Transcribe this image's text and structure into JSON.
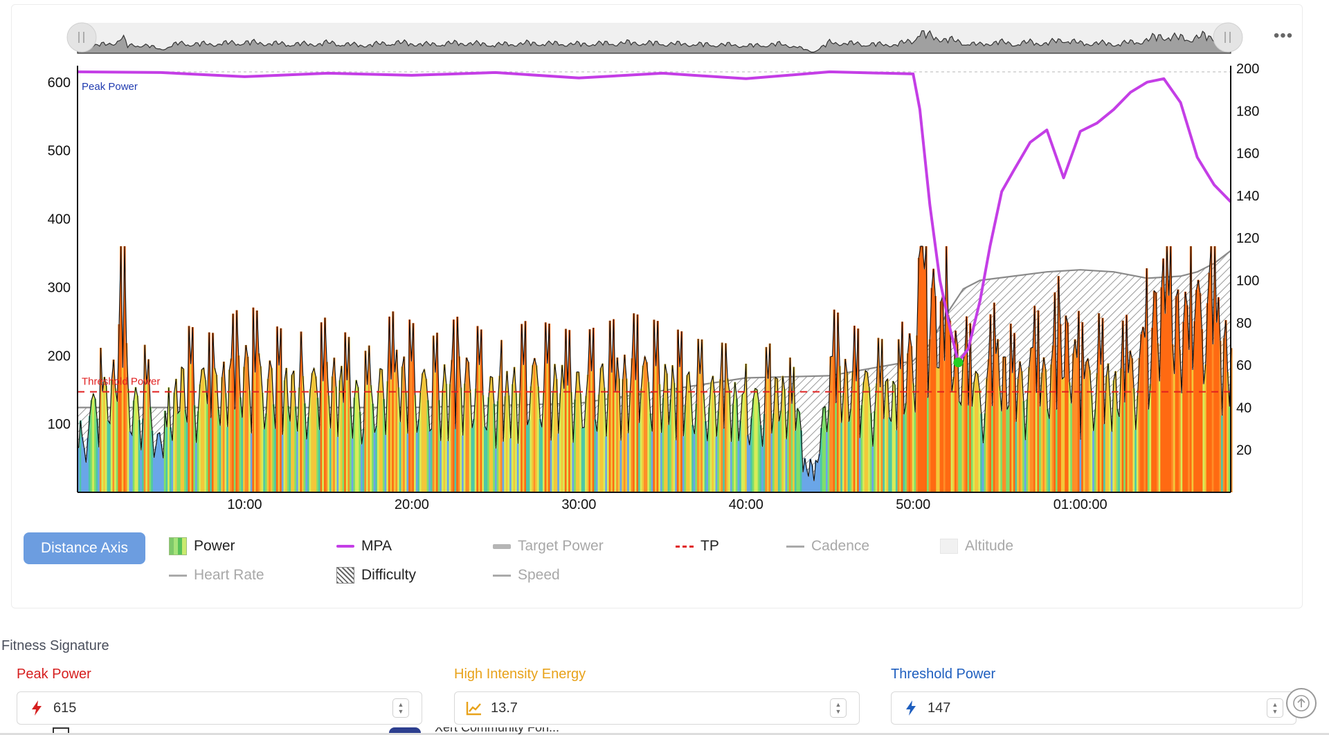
{
  "chart": {
    "left_axis_ticks": [
      "600",
      "500",
      "400",
      "300",
      "200",
      "100"
    ],
    "right_axis_ticks": [
      "200",
      "180",
      "160",
      "140",
      "120",
      "100",
      "80",
      "60",
      "40",
      "20"
    ],
    "time_ticks": [
      "10:00",
      "20:00",
      "30:00",
      "40:00",
      "50:00",
      "01:00:00"
    ],
    "peak_power_label": "Peak Power",
    "threshold_power_label": "Threshold Power",
    "menu_glyph": "•••"
  },
  "chart_data": {
    "type": "area",
    "x_unit": "minutes",
    "x_range": [
      0,
      69
    ],
    "y_left_range": [
      0,
      620
    ],
    "y_right_range": [
      0,
      200
    ],
    "peak_power": 615,
    "threshold_power": 147,
    "mpa_marker_minute": 52.7,
    "series": [
      {
        "name": "MPA",
        "x": [
          0,
          5,
          10,
          15,
          20,
          25,
          30,
          35,
          40,
          45,
          50,
          50.4,
          51,
          51.6,
          52.2,
          52.7,
          53.3,
          54,
          54.6,
          55.3,
          56,
          57,
          58,
          59,
          60,
          61,
          62,
          63,
          64,
          65,
          66,
          67,
          68,
          69
        ],
        "values": [
          615,
          614,
          608,
          613,
          610,
          614,
          606,
          613,
          605,
          615,
          612,
          560,
          420,
          310,
          240,
          190,
          210,
          280,
          360,
          440,
          470,
          512,
          530,
          460,
          528,
          540,
          560,
          585,
          600,
          605,
          570,
          490,
          450,
          425
        ]
      },
      {
        "name": "Power",
        "x": [
          0,
          1,
          2,
          2.7,
          3,
          4,
          5,
          6,
          8,
          10,
          12,
          14,
          15,
          17,
          19,
          20,
          21,
          23,
          25,
          27,
          30,
          33,
          35,
          37,
          39,
          40,
          42,
          43,
          44,
          45,
          47,
          49,
          50,
          50.3,
          51,
          52,
          53,
          54,
          55,
          56,
          57,
          58,
          59,
          60,
          61,
          62,
          63,
          64,
          64.8,
          65.5,
          66.5,
          67.5,
          69
        ],
        "values": [
          60,
          130,
          150,
          265,
          120,
          140,
          60,
          160,
          150,
          180,
          155,
          150,
          170,
          130,
          175,
          160,
          145,
          170,
          140,
          165,
          150,
          170,
          160,
          145,
          140,
          120,
          150,
          110,
          15,
          175,
          150,
          140,
          215,
          335,
          280,
          230,
          170,
          140,
          190,
          150,
          180,
          160,
          230,
          160,
          170,
          150,
          175,
          215,
          290,
          260,
          240,
          280,
          190
        ]
      },
      {
        "name": "Difficulty",
        "x": [
          0,
          20,
          30,
          35,
          40,
          45,
          50,
          51,
          52,
          53,
          54,
          56,
          58,
          60,
          62,
          64,
          66,
          67,
          68,
          69
        ],
        "values": [
          40,
          40,
          42,
          48,
          54,
          55,
          62,
          70,
          84,
          96,
          100,
          102,
          104,
          105,
          104,
          101,
          102,
          104,
          108,
          114
        ]
      }
    ]
  },
  "legend": {
    "distance_axis": "Distance Axis",
    "power": "Power",
    "mpa": "MPA",
    "target_power": "Target Power",
    "tp": "TP",
    "cadence": "Cadence",
    "altitude": "Altitude",
    "heart_rate": "Heart Rate",
    "difficulty": "Difficulty",
    "speed": "Speed"
  },
  "colors": {
    "mpa": "#c43ee6",
    "threshold": "#e02020",
    "peak_label": "#1f3ab0",
    "button": "#6c9de0",
    "peak_field_label": "#d61f1f",
    "hie_field_label": "#e8a21a",
    "tp_field_label": "#1f5fbf"
  },
  "fitness": {
    "title": "Fitness Signature",
    "peak_power": {
      "label": "Peak Power",
      "value": "615",
      "icon": "lightning-icon"
    },
    "high_intensity_energy": {
      "label": "High Intensity Energy",
      "value": "13.7",
      "icon": "trend-icon"
    },
    "threshold_power": {
      "label": "Threshold Power",
      "value": "147",
      "icon": "lightning-icon"
    }
  },
  "footer": {
    "partial_text": "Xert Community Fon..."
  }
}
